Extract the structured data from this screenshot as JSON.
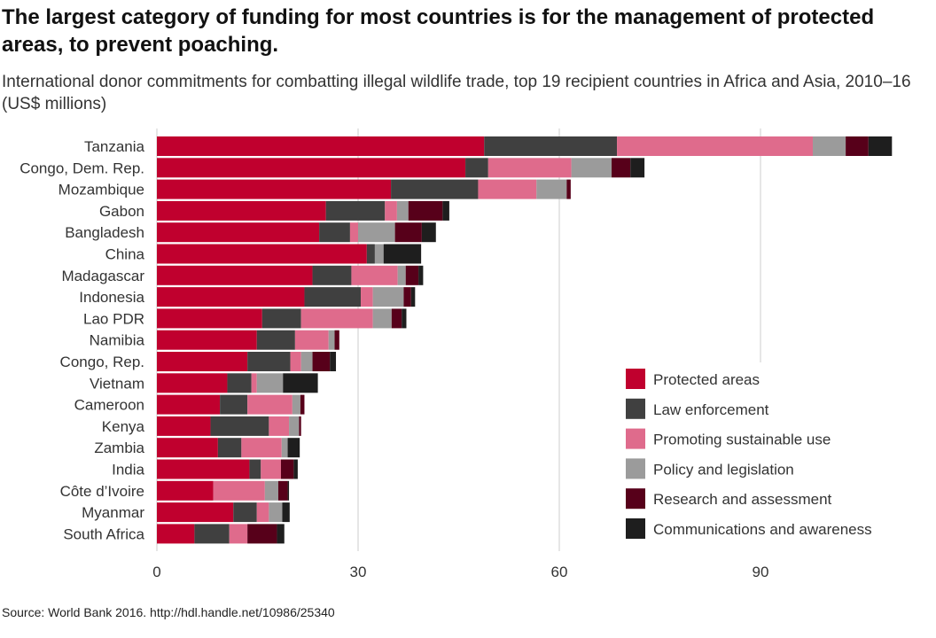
{
  "title": "The largest category of funding for most countries is for the management of protected areas, to prevent poaching.",
  "subtitle": "International donor commitments for combatting illegal wildlife trade, top 19 recipient countries in Africa and Asia, 2010–16 (US$ millions)",
  "source": "Source: World Bank 2016. http://hdl.handle.net/10986/25340",
  "chart_data": {
    "type": "bar",
    "orientation": "horizontal",
    "stacked": true,
    "xlim": [
      0,
      110
    ],
    "xticks": [
      "0",
      "30",
      "60",
      "90"
    ],
    "xtick_values": [
      0,
      30,
      60,
      90
    ],
    "grid": true,
    "legend_position": "bottom-right",
    "categories": [
      "Tanzania",
      "Congo, Dem. Rep.",
      "Mozambique",
      "Gabon",
      "Bangladesh",
      "China",
      "Madagascar",
      "Indonesia",
      "Lao PDR",
      "Namibia",
      "Congo, Rep.",
      "Vietnam",
      "Cameroon",
      "Kenya",
      "Zambia",
      "India",
      "Côte d’Ivoire",
      "Myanmar",
      "South Africa"
    ],
    "series": [
      {
        "name": "Protected areas",
        "color": "#C0002E",
        "values": [
          48.8,
          46.0,
          34.9,
          25.2,
          24.2,
          31.3,
          23.2,
          22.0,
          15.7,
          14.9,
          13.5,
          10.5,
          9.4,
          8.0,
          9.1,
          13.8,
          8.4,
          11.4,
          5.6
        ]
      },
      {
        "name": "Law enforcement",
        "color": "#404040",
        "values": [
          19.8,
          3.4,
          13.0,
          8.8,
          4.6,
          1.2,
          5.8,
          8.4,
          5.8,
          5.7,
          6.4,
          3.6,
          4.1,
          8.7,
          3.5,
          1.7,
          0,
          3.5,
          5.2
        ]
      },
      {
        "name": "Promoting sustainable use",
        "color": "#DF6B8C",
        "values": [
          29.2,
          12.4,
          8.7,
          1.8,
          1.2,
          0,
          6.9,
          1.8,
          10.7,
          5.0,
          1.6,
          0.8,
          6.7,
          3.0,
          6.0,
          3.0,
          7.7,
          1.8,
          2.7
        ]
      },
      {
        "name": "Policy and legislation",
        "color": "#9B9B9B",
        "values": [
          4.9,
          6.0,
          4.5,
          1.7,
          5.5,
          1.3,
          1.2,
          4.6,
          2.8,
          0.9,
          1.7,
          3.9,
          1.2,
          1.5,
          0.9,
          0,
          2.0,
          2.0,
          0
        ]
      },
      {
        "name": "Research and assessment",
        "color": "#57001A",
        "values": [
          3.4,
          2.8,
          0.6,
          5.1,
          4.0,
          0,
          1.9,
          1.1,
          1.5,
          0.7,
          2.6,
          0,
          0.6,
          0.3,
          0,
          1.9,
          1.4,
          0,
          4.4
        ]
      },
      {
        "name": "Communications and awareness",
        "color": "#1E1E1E",
        "values": [
          3.5,
          2.1,
          0,
          1.0,
          2.1,
          5.6,
          0.7,
          0.6,
          0.7,
          0,
          0.9,
          5.2,
          0,
          0,
          1.8,
          0.6,
          0.2,
          1.1,
          1.1
        ]
      }
    ]
  }
}
